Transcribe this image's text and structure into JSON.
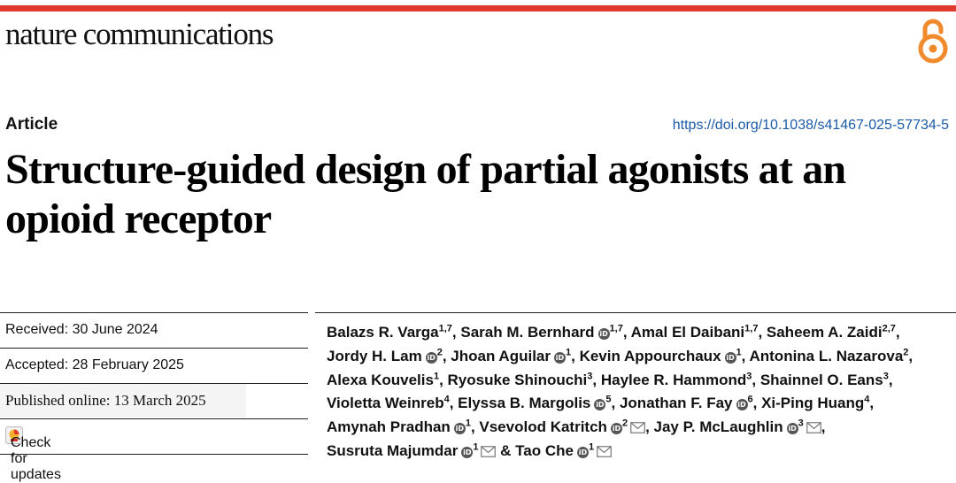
{
  "header": {
    "journal_name": "nature communications",
    "open_access_icon": "open-lock-icon",
    "accent_color": "#e03a2c"
  },
  "article": {
    "type": "Article",
    "doi": "https://doi.org/10.1038/s41467-025-57734-5",
    "title": "Structure-guided design of partial agonists at an opioid receptor"
  },
  "dates": {
    "received": "Received: 30 June 2024",
    "accepted": "Accepted: 28 February 2025",
    "published": "Published online: 13 March 2025"
  },
  "check_updates": {
    "label": "Check for updates",
    "icon": "check-for-updates-icon"
  },
  "authors": [
    {
      "name": "Balazs R. Varga",
      "aff": "1,7",
      "orcid": false,
      "email": false
    },
    {
      "name": "Sarah M. Bernhard",
      "aff": "1,7",
      "orcid": true,
      "email": false
    },
    {
      "name": "Amal El Daibani",
      "aff": "1,7",
      "orcid": false,
      "email": false
    },
    {
      "name": "Saheem A. Zaidi",
      "aff": "2,7",
      "orcid": false,
      "email": false
    },
    {
      "name": "Jordy H. Lam",
      "aff": "2",
      "orcid": true,
      "email": false
    },
    {
      "name": "Jhoan Aguilar",
      "aff": "1",
      "orcid": true,
      "email": false
    },
    {
      "name": "Kevin Appourchaux",
      "aff": "1",
      "orcid": true,
      "email": false
    },
    {
      "name": "Antonina L. Nazarova",
      "aff": "2",
      "orcid": false,
      "email": false
    },
    {
      "name": "Alexa Kouvelis",
      "aff": "1",
      "orcid": false,
      "email": false
    },
    {
      "name": "Ryosuke Shinouchi",
      "aff": "3",
      "orcid": false,
      "email": false
    },
    {
      "name": "Haylee R. Hammond",
      "aff": "3",
      "orcid": false,
      "email": false
    },
    {
      "name": "Shainnel O. Eans",
      "aff": "3",
      "orcid": false,
      "email": false
    },
    {
      "name": "Violetta Weinreb",
      "aff": "4",
      "orcid": false,
      "email": false
    },
    {
      "name": "Elyssa B. Margolis",
      "aff": "5",
      "orcid": true,
      "email": false
    },
    {
      "name": "Jonathan F. Fay",
      "aff": "6",
      "orcid": true,
      "email": false
    },
    {
      "name": "Xi-Ping Huang",
      "aff": "4",
      "orcid": false,
      "email": false
    },
    {
      "name": "Amynah Pradhan",
      "aff": "1",
      "orcid": true,
      "email": false
    },
    {
      "name": "Vsevolod Katritch",
      "aff": "2",
      "orcid": true,
      "email": true
    },
    {
      "name": "Jay P. McLaughlin",
      "aff": "3",
      "orcid": true,
      "email": true
    },
    {
      "name": "Susruta Majumdar",
      "aff": "1",
      "orcid": true,
      "email": true
    },
    {
      "name": "Tao Che",
      "aff": "1",
      "orcid": true,
      "email": true
    }
  ],
  "author_separators": {
    "comma": ", ",
    "final": " & "
  }
}
